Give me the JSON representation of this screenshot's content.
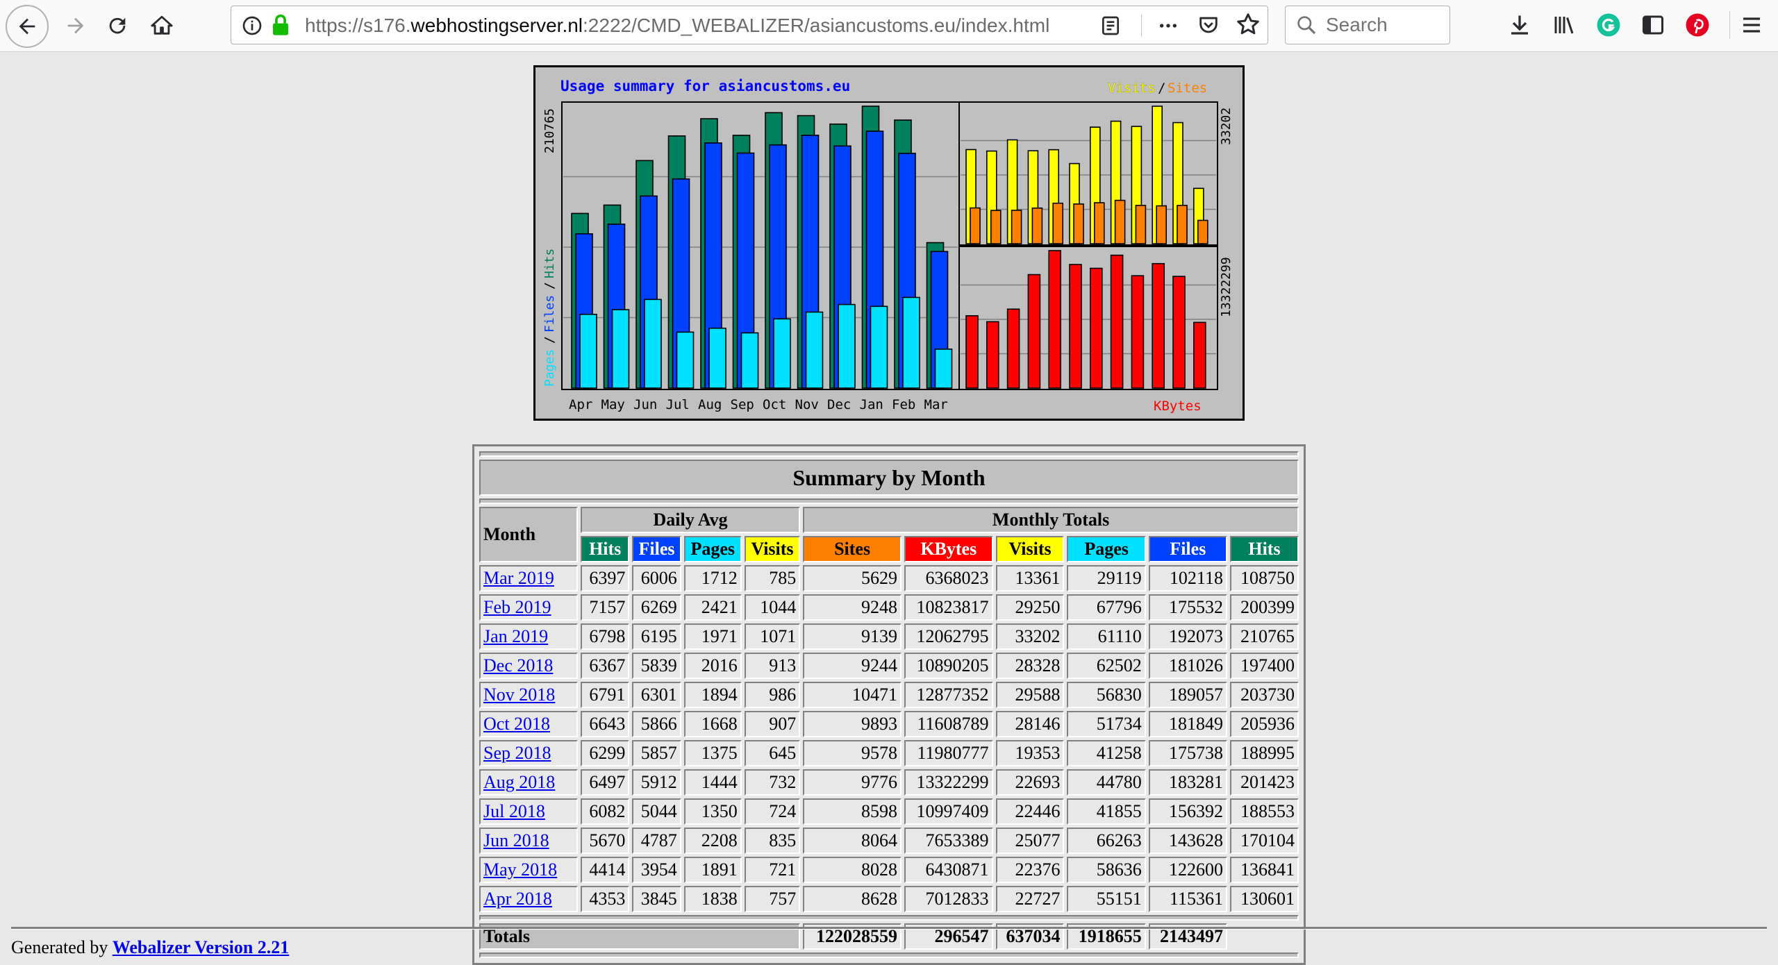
{
  "browser": {
    "url_prefix": "https://s176.",
    "url_host": "webhostingserver.nl",
    "url_suffix": ":2222/CMD_WEBALIZER/asiancustoms.eu/index.html",
    "search_placeholder": "Search"
  },
  "graph": {
    "title": "Usage summary for asiancustoms.eu",
    "left_axis_max": "210765",
    "left_axis_label_pages": "Pages",
    "left_axis_label_files": "Files",
    "left_axis_label_hits": "Hits",
    "right_top_max": "33202",
    "right_bottom_max": "13322299",
    "label_visits": "Visits",
    "label_sites": "Sites",
    "label_kbytes": "KBytes",
    "slash": "/",
    "colors": {
      "hits": "#00805c",
      "files": "#0040ff",
      "pages": "#00e0ff",
      "visits": "#ffff00",
      "sites": "#ff8000",
      "kbytes": "#ff0000",
      "title": "#0000ff"
    }
  },
  "chart_data": {
    "type": "bar",
    "title": "Usage summary for asiancustoms.eu",
    "categories": [
      "Apr",
      "May",
      "Jun",
      "Jul",
      "Aug",
      "Sep",
      "Oct",
      "Nov",
      "Dec",
      "Jan",
      "Feb",
      "Mar"
    ],
    "series": [
      {
        "name": "Hits",
        "values": [
          130601,
          136841,
          170104,
          188553,
          201423,
          188995,
          205936,
          203730,
          197400,
          210765,
          200399,
          108750
        ]
      },
      {
        "name": "Files",
        "values": [
          115361,
          122600,
          143628,
          156392,
          183281,
          175738,
          181849,
          189057,
          181026,
          192073,
          175532,
          102118
        ]
      },
      {
        "name": "Pages",
        "values": [
          55151,
          58636,
          66263,
          41855,
          44780,
          41258,
          51734,
          56830,
          62502,
          61110,
          67796,
          29119
        ]
      },
      {
        "name": "Visits",
        "values": [
          22727,
          22376,
          25077,
          22446,
          22693,
          19353,
          28146,
          29588,
          28328,
          33202,
          29250,
          13361
        ]
      },
      {
        "name": "Sites",
        "values": [
          8628,
          8028,
          8064,
          8598,
          9776,
          9578,
          9893,
          10471,
          9244,
          9139,
          9248,
          5629
        ]
      },
      {
        "name": "KBytes",
        "values": [
          7012833,
          6430871,
          7653389,
          10997409,
          13322299,
          11980777,
          11608789,
          12877352,
          10890205,
          12062795,
          10823817,
          6368023
        ]
      }
    ],
    "ylim_hits": [
      0,
      210765
    ],
    "ylim_visits": [
      0,
      33202
    ],
    "ylim_kbytes": [
      0,
      13322299
    ]
  },
  "summary": {
    "title": "Summary by Month",
    "month_header": "Month",
    "daily_avg_header": "Daily Avg",
    "monthly_totals_header": "Monthly Totals",
    "daily_cols": [
      "Hits",
      "Files",
      "Pages",
      "Visits"
    ],
    "monthly_cols": [
      "Sites",
      "KBytes",
      "Visits",
      "Pages",
      "Files",
      "Hits"
    ],
    "rows": [
      {
        "month": "Mar 2019",
        "cells": [
          "6397",
          "6006",
          "1712",
          "785",
          "5629",
          "6368023",
          "13361",
          "29119",
          "102118",
          "108750"
        ]
      },
      {
        "month": "Feb 2019",
        "cells": [
          "7157",
          "6269",
          "2421",
          "1044",
          "9248",
          "10823817",
          "29250",
          "67796",
          "175532",
          "200399"
        ]
      },
      {
        "month": "Jan 2019",
        "cells": [
          "6798",
          "6195",
          "1971",
          "1071",
          "9139",
          "12062795",
          "33202",
          "61110",
          "192073",
          "210765"
        ]
      },
      {
        "month": "Dec 2018",
        "cells": [
          "6367",
          "5839",
          "2016",
          "913",
          "9244",
          "10890205",
          "28328",
          "62502",
          "181026",
          "197400"
        ]
      },
      {
        "month": "Nov 2018",
        "cells": [
          "6791",
          "6301",
          "1894",
          "986",
          "10471",
          "12877352",
          "29588",
          "56830",
          "189057",
          "203730"
        ]
      },
      {
        "month": "Oct 2018",
        "cells": [
          "6643",
          "5866",
          "1668",
          "907",
          "9893",
          "11608789",
          "28146",
          "51734",
          "181849",
          "205936"
        ]
      },
      {
        "month": "Sep 2018",
        "cells": [
          "6299",
          "5857",
          "1375",
          "645",
          "9578",
          "11980777",
          "19353",
          "41258",
          "175738",
          "188995"
        ]
      },
      {
        "month": "Aug 2018",
        "cells": [
          "6497",
          "5912",
          "1444",
          "732",
          "9776",
          "13322299",
          "22693",
          "44780",
          "183281",
          "201423"
        ]
      },
      {
        "month": "Jul 2018",
        "cells": [
          "6082",
          "5044",
          "1350",
          "724",
          "8598",
          "10997409",
          "22446",
          "41855",
          "156392",
          "188553"
        ]
      },
      {
        "month": "Jun 2018",
        "cells": [
          "5670",
          "4787",
          "2208",
          "835",
          "8064",
          "7653389",
          "25077",
          "66263",
          "143628",
          "170104"
        ]
      },
      {
        "month": "May 2018",
        "cells": [
          "4414",
          "3954",
          "1891",
          "721",
          "8028",
          "6430871",
          "22376",
          "58636",
          "122600",
          "136841"
        ]
      },
      {
        "month": "Apr 2018",
        "cells": [
          "4353",
          "3845",
          "1838",
          "757",
          "8628",
          "7012833",
          "22727",
          "55151",
          "115361",
          "130601"
        ]
      }
    ],
    "totals_label": "Totals",
    "totals": [
      "122028559",
      "296547",
      "637034",
      "1918655",
      "2143497"
    ]
  },
  "footer": {
    "generated_by": "Generated by ",
    "link_text": "Webalizer Version 2.21"
  }
}
